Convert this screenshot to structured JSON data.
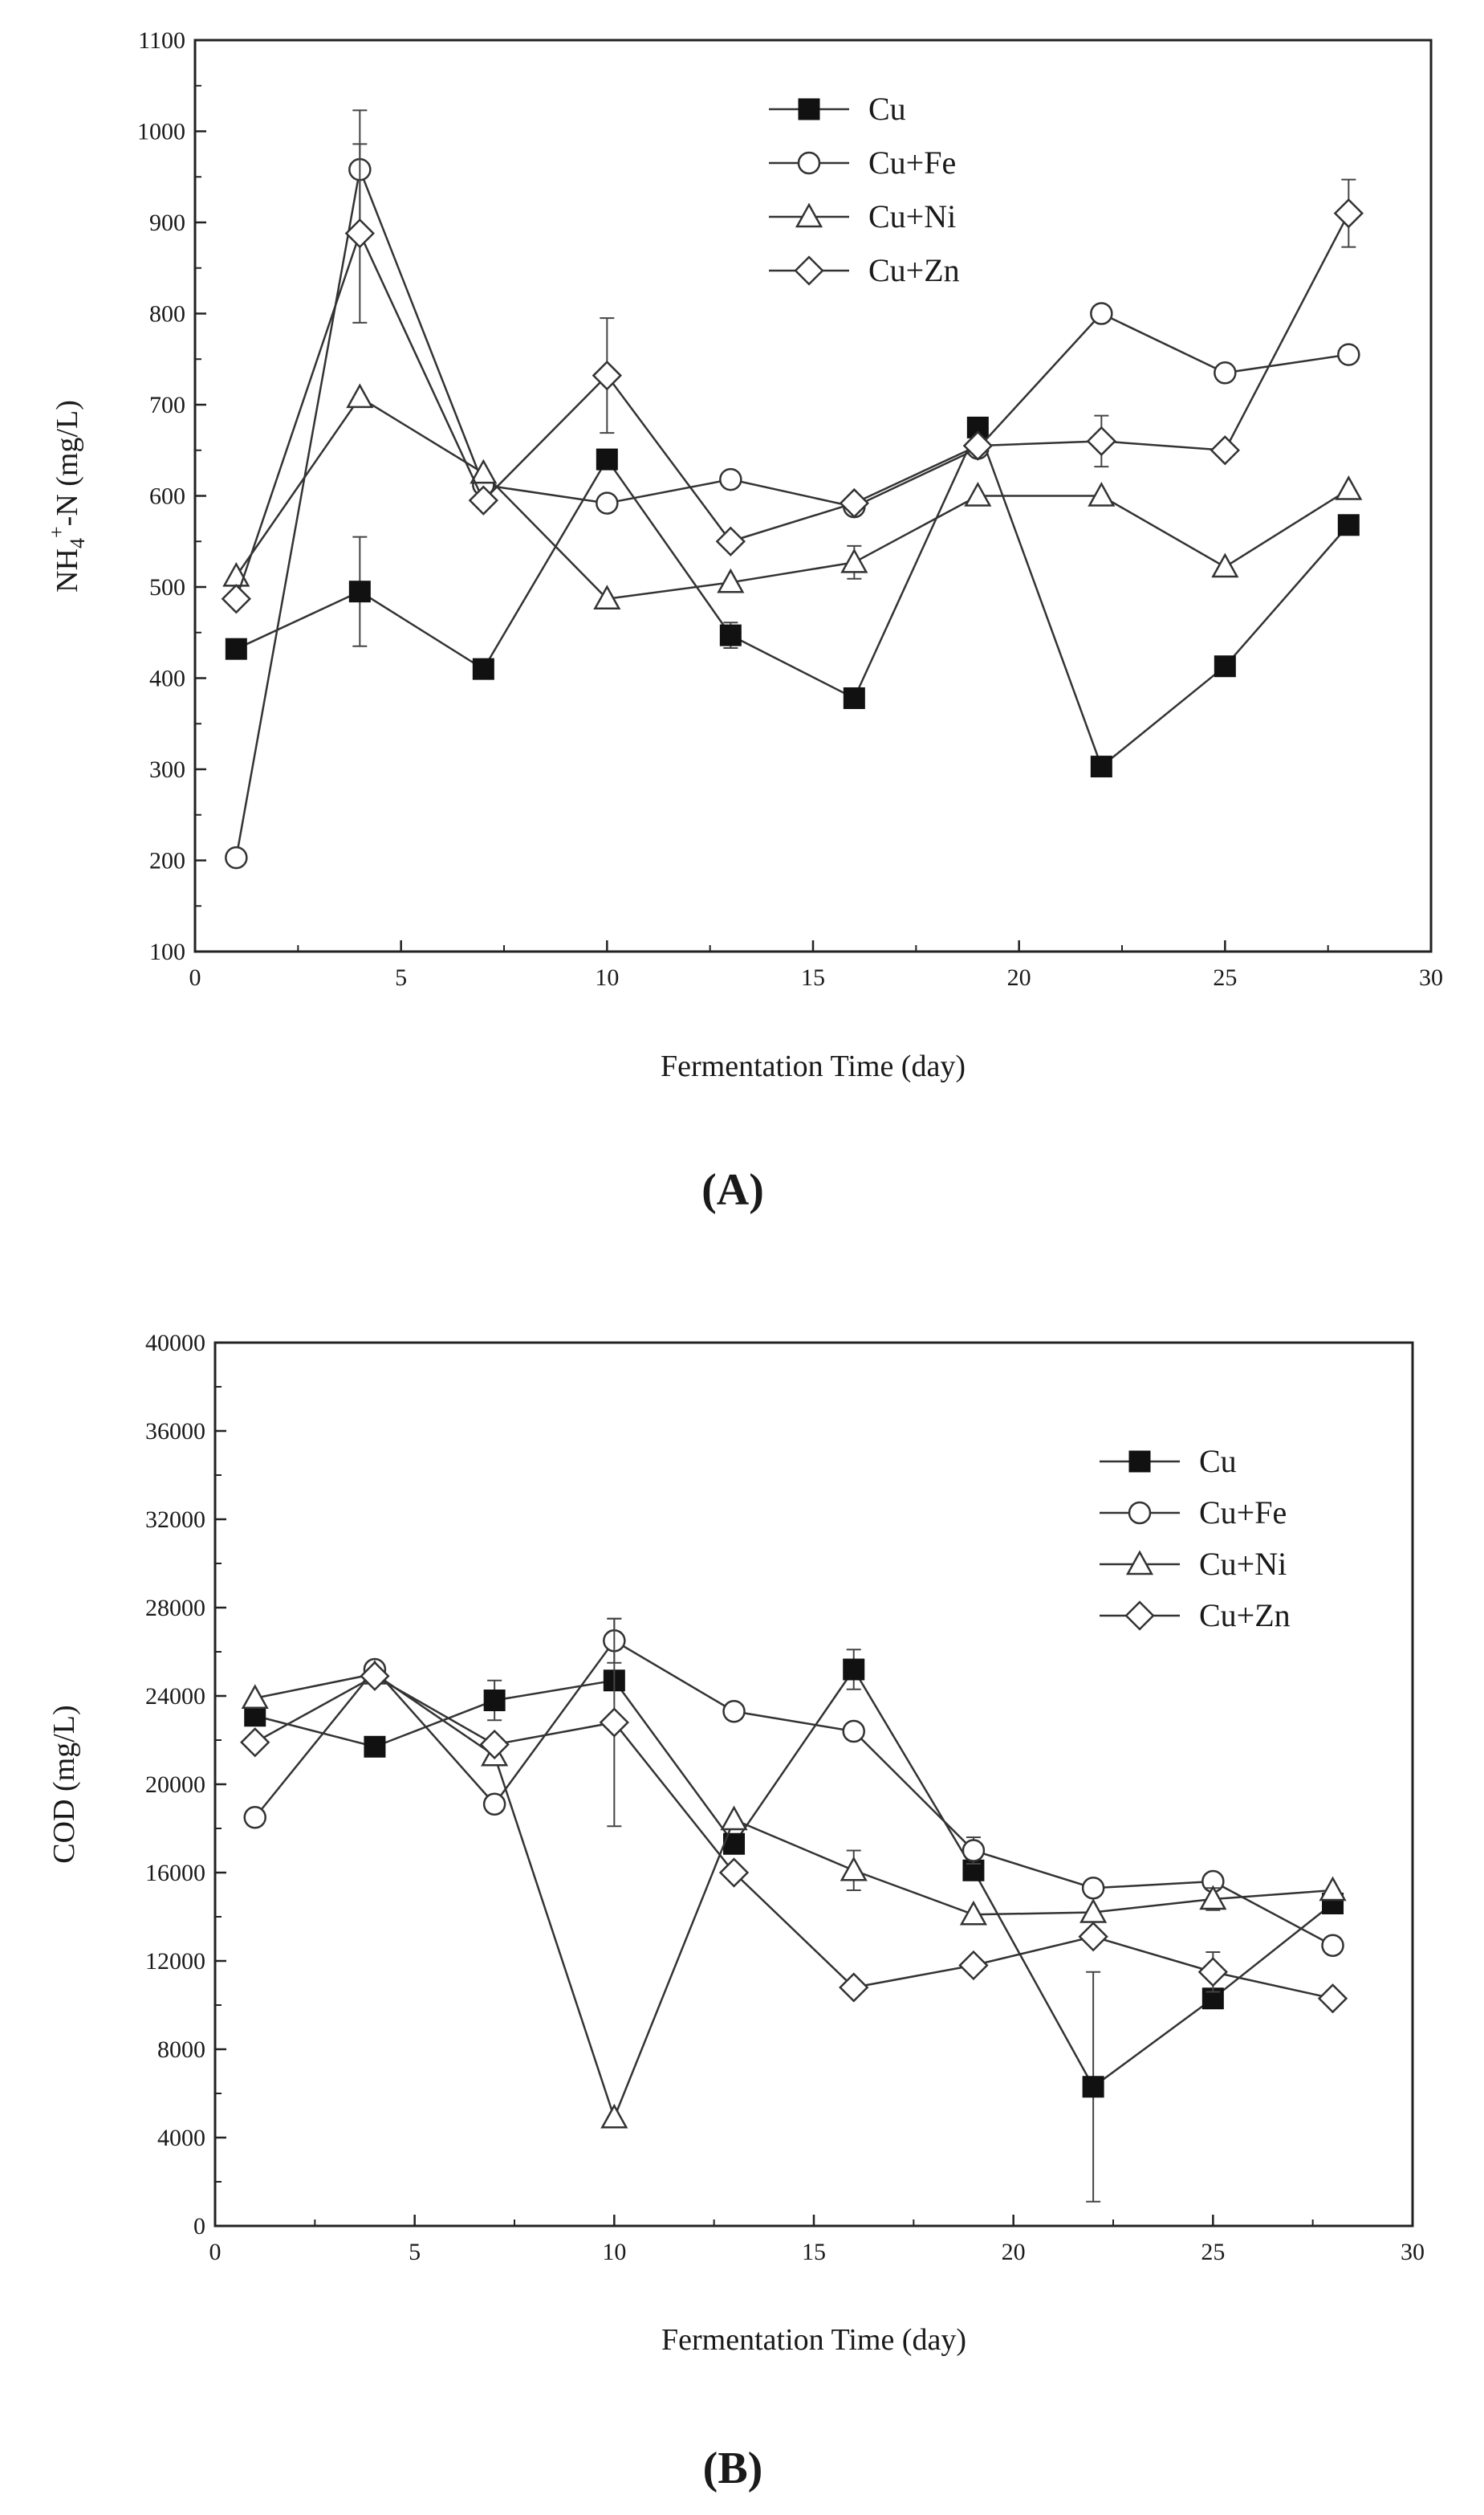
{
  "chart_data": [
    {
      "type": "line",
      "panel_label": "(A)",
      "panel_letter": "A",
      "xlabel": "Fermentation Time (day)",
      "ylabel": "NH4+-N (mg/L)",
      "ylabel_parts": {
        "base": "NH",
        "sub": "4",
        "sup": "+",
        "rest": "-N (mg/L)"
      },
      "xlim": [
        0,
        30
      ],
      "ylim": [
        100,
        1100
      ],
      "xticks": [
        0,
        5,
        10,
        15,
        20,
        25,
        30
      ],
      "yticks": [
        100,
        200,
        300,
        400,
        500,
        600,
        700,
        800,
        900,
        1000,
        1100
      ],
      "legend_position": "top-right",
      "x": [
        1,
        4,
        7,
        10,
        13,
        16,
        19,
        22,
        25,
        28
      ],
      "series": [
        {
          "name": "Cu",
          "marker": "filled-square",
          "values": [
            432,
            495,
            410,
            640,
            447,
            378,
            675,
            303,
            413,
            568
          ],
          "errors": [
            0,
            60,
            0,
            0,
            14,
            0,
            0,
            0,
            0,
            0
          ]
        },
        {
          "name": "Cu+Fe",
          "marker": "open-circle",
          "values": [
            203,
            958,
            612,
            592,
            618,
            588,
            652,
            800,
            735,
            755
          ],
          "errors": [
            0,
            65,
            0,
            0,
            0,
            0,
            0,
            0,
            0,
            0
          ]
        },
        {
          "name": "Cu+Ni",
          "marker": "open-triangle",
          "values": [
            512,
            708,
            625,
            487,
            505,
            527,
            600,
            600,
            522,
            607
          ],
          "errors": [
            0,
            0,
            0,
            0,
            0,
            18,
            0,
            0,
            0,
            0
          ]
        },
        {
          "name": "Cu+Zn",
          "marker": "open-diamond",
          "values": [
            487,
            888,
            595,
            732,
            550,
            592,
            655,
            660,
            650,
            910
          ],
          "errors": [
            0,
            98,
            0,
            63,
            0,
            0,
            0,
            28,
            0,
            37
          ]
        }
      ]
    },
    {
      "type": "line",
      "panel_label": "(B)",
      "panel_letter": "B",
      "xlabel": "Fermentation Time (day)",
      "ylabel": "COD (mg/L)",
      "xlim": [
        0,
        30
      ],
      "ylim": [
        0,
        40000
      ],
      "xticks": [
        0,
        5,
        10,
        15,
        20,
        25,
        30
      ],
      "yticks": [
        0,
        4000,
        8000,
        12000,
        16000,
        20000,
        24000,
        28000,
        32000,
        36000,
        40000
      ],
      "legend_position": "top-right",
      "x": [
        1,
        4,
        7,
        10,
        13,
        16,
        19,
        22,
        25,
        28
      ],
      "series": [
        {
          "name": "Cu",
          "marker": "filled-square",
          "values": [
            23100,
            21700,
            23800,
            24700,
            17300,
            25200,
            16100,
            6300,
            10300,
            14600
          ],
          "errors": [
            0,
            0,
            900,
            0,
            0,
            900,
            0,
            5200,
            0,
            0
          ]
        },
        {
          "name": "Cu+Fe",
          "marker": "open-circle",
          "values": [
            18500,
            25200,
            19100,
            26500,
            23300,
            22400,
            17000,
            15300,
            15600,
            12700
          ],
          "errors": [
            0,
            0,
            0,
            1000,
            0,
            0,
            600,
            0,
            0,
            0
          ]
        },
        {
          "name": "Cu+Ni",
          "marker": "open-triangle",
          "values": [
            23900,
            25000,
            21300,
            4900,
            18400,
            16100,
            14100,
            14200,
            14800,
            15200
          ],
          "errors": [
            0,
            0,
            0,
            0,
            0,
            900,
            0,
            0,
            500,
            0
          ]
        },
        {
          "name": "Cu+Zn",
          "marker": "open-diamond",
          "values": [
            21900,
            24900,
            21800,
            22800,
            16000,
            10800,
            11800,
            13100,
            11500,
            10300
          ],
          "errors": [
            0,
            0,
            0,
            4700,
            0,
            0,
            0,
            0,
            900,
            0
          ]
        }
      ]
    }
  ]
}
